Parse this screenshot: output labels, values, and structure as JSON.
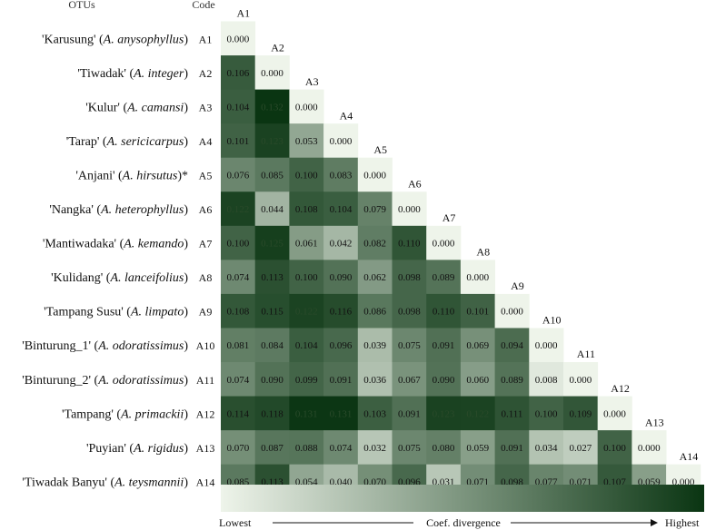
{
  "chart_data": {
    "type": "heatmap",
    "header": {
      "otus": "OTUs",
      "code": "Code"
    },
    "codes": [
      "A1",
      "A2",
      "A3",
      "A4",
      "A5",
      "A6",
      "A7",
      "A8",
      "A9",
      "A10",
      "A11",
      "A12",
      "A13",
      "A14"
    ],
    "otus": [
      {
        "name": "'Karusung'",
        "species": "A. anysophyllus"
      },
      {
        "name": "'Tiwadak'",
        "species": "A. integer"
      },
      {
        "name": "'Kulur'",
        "species": "A. camansi"
      },
      {
        "name": "'Tarap'",
        "species": "A. sericicarpus"
      },
      {
        "name": "'Anjani'",
        "species": "A. hirsutus",
        "suffix": "*"
      },
      {
        "name": "'Nangka'",
        "species": "A. heterophyllus"
      },
      {
        "name": "'Mantiwadaka'",
        "species": "A. kemando"
      },
      {
        "name": "'Kulidang'",
        "species": "A. lanceifolius"
      },
      {
        "name": "'Tampang Susu'",
        "species": "A. limpato"
      },
      {
        "name": "'Binturung_1'",
        "species": "A. odoratissimus"
      },
      {
        "name": "'Binturung_2'",
        "species": "A. odoratissimus"
      },
      {
        "name": "'Tampang'",
        "species": "A. primackii"
      },
      {
        "name": "'Puyian'",
        "species": "A. rigidus"
      },
      {
        "name": "'Tiwadak Banyu'",
        "species": "A. teysmannii"
      }
    ],
    "matrix": [
      [
        0.0
      ],
      [
        0.106,
        0.0
      ],
      [
        0.104,
        0.132,
        0.0
      ],
      [
        0.101,
        0.123,
        0.053,
        0.0
      ],
      [
        0.076,
        0.085,
        0.1,
        0.083,
        0.0
      ],
      [
        0.122,
        0.044,
        0.108,
        0.104,
        0.079,
        0.0
      ],
      [
        0.1,
        0.125,
        0.061,
        0.042,
        0.082,
        0.11,
        0.0
      ],
      [
        0.074,
        0.113,
        0.1,
        0.09,
        0.062,
        0.098,
        0.089,
        0.0
      ],
      [
        0.108,
        0.115,
        0.122,
        0.116,
        0.086,
        0.098,
        0.11,
        0.101,
        0.0
      ],
      [
        0.081,
        0.084,
        0.104,
        0.096,
        0.039,
        0.075,
        0.091,
        0.069,
        0.094,
        0.0
      ],
      [
        0.074,
        0.09,
        0.099,
        0.091,
        0.036,
        0.067,
        0.09,
        0.06,
        0.089,
        0.008,
        0.0
      ],
      [
        0.114,
        0.118,
        0.131,
        0.131,
        0.103,
        0.091,
        0.123,
        0.122,
        0.111,
        0.1,
        0.109,
        0.0
      ],
      [
        0.07,
        0.087,
        0.088,
        0.074,
        0.032,
        0.075,
        0.08,
        0.059,
        0.091,
        0.034,
        0.027,
        0.1,
        0.0
      ],
      [
        0.085,
        0.113,
        0.054,
        0.04,
        0.07,
        0.096,
        0.031,
        0.071,
        0.098,
        0.077,
        0.071,
        0.107,
        0.059,
        0.0
      ]
    ],
    "color_scale": {
      "low": "#eef4ea",
      "high": "#0a3512",
      "min": 0.0,
      "max": 0.132
    },
    "legend": {
      "low_label": "Lowest",
      "mid_label": "Coef. divergence",
      "high_label": "Highest"
    }
  }
}
